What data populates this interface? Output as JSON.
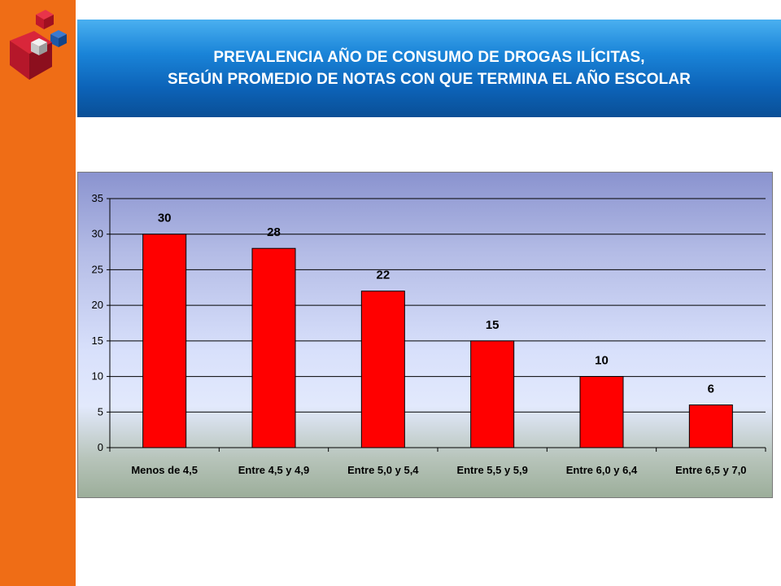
{
  "title": {
    "line1": "PREVALENCIA AÑO DE CONSUMO DE DROGAS ILÍCITAS,",
    "line2": "SEGÚN PROMEDIO DE NOTAS  CON QUE TERMINA EL AÑO ESCOLAR"
  },
  "colors": {
    "sidebar": "#ef6d16",
    "banner": "#0c63b8",
    "bar": "#ff0000"
  },
  "chart_data": {
    "type": "bar",
    "categories": [
      "Menos de 4,5",
      "Entre 4,5 y 4,9",
      "Entre 5,0 y 5,4",
      "Entre 5,5 y 5,9",
      "Entre 6,0 y 6,4",
      "Entre 6,5 y 7,0"
    ],
    "values": [
      30,
      28,
      22,
      15,
      10,
      6
    ],
    "value_labels": [
      "30",
      "28",
      "22",
      "15",
      "10",
      "6"
    ],
    "yticks": [
      0,
      5,
      10,
      15,
      20,
      25,
      30,
      35
    ],
    "ylim": [
      0,
      35
    ],
    "grid": true,
    "legend": "none",
    "title": "",
    "xlabel": "",
    "ylabel": ""
  }
}
